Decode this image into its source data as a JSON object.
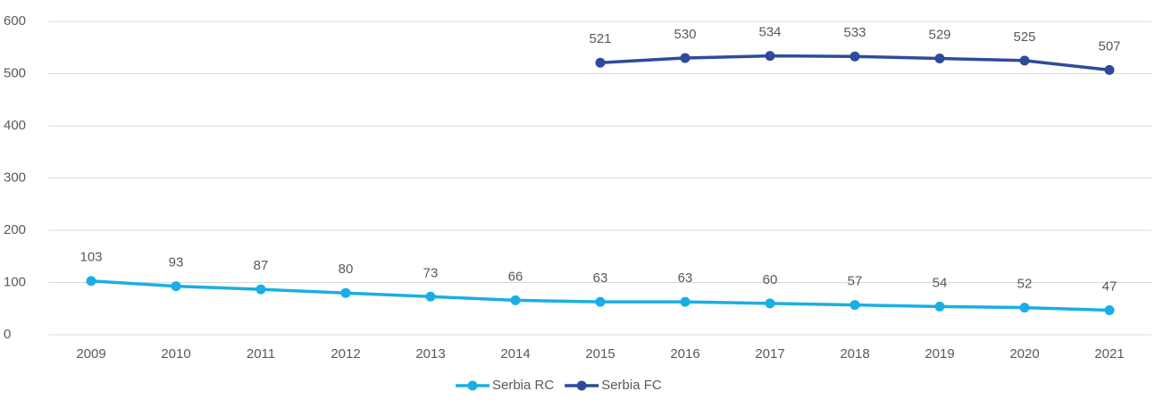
{
  "chart_data": {
    "type": "line",
    "categories": [
      "2009",
      "2010",
      "2011",
      "2012",
      "2013",
      "2014",
      "2015",
      "2016",
      "2017",
      "2018",
      "2019",
      "2020",
      "2021"
    ],
    "series": [
      {
        "name": "Serbia RC",
        "color": "#1aaee6",
        "values": [
          103,
          93,
          87,
          80,
          73,
          66,
          63,
          63,
          60,
          57,
          54,
          52,
          47
        ]
      },
      {
        "name": "Serbia FC",
        "color": "#2e4b9b",
        "values": [
          null,
          null,
          null,
          null,
          null,
          null,
          521,
          530,
          534,
          533,
          529,
          525,
          507
        ]
      }
    ],
    "ylim": [
      0,
      600
    ],
    "yticks": [
      0,
      100,
      200,
      300,
      400,
      500,
      600
    ],
    "grid": true,
    "legend": "bottom"
  }
}
